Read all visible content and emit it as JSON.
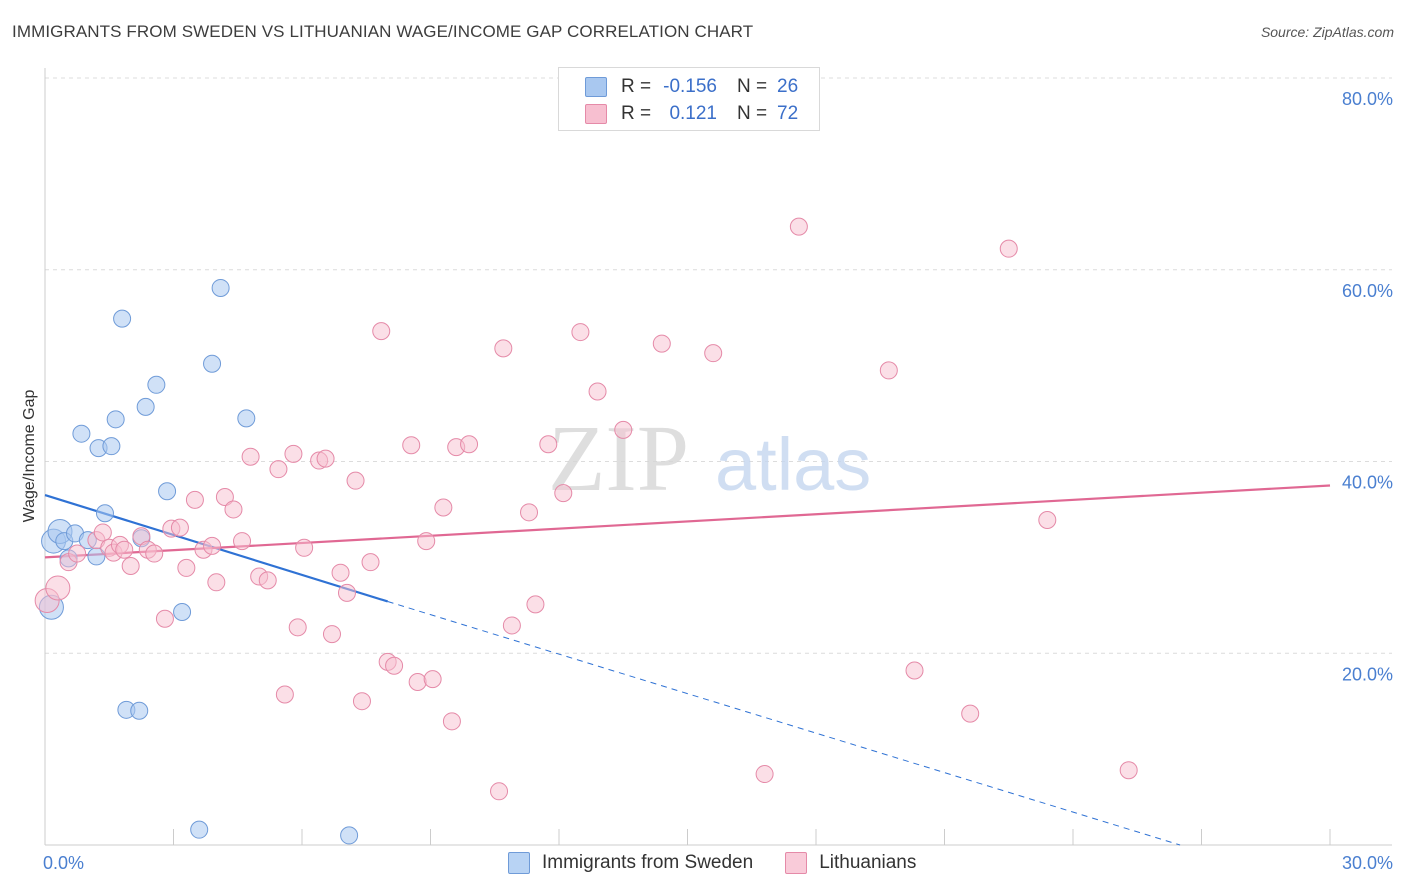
{
  "header": {
    "title": "IMMIGRANTS FROM SWEDEN VS LITHUANIAN WAGE/INCOME GAP CORRELATION CHART",
    "source": "Source: ZipAtlas.com"
  },
  "watermark": {
    "zip": "ZIP",
    "atlas": "atlas"
  },
  "legend": {
    "rows": [
      {
        "r_label": "R =",
        "r_value": "-0.156",
        "n_label": "N =",
        "n_value": "26",
        "color": "#a9c8f0",
        "border": "#6f9bd8"
      },
      {
        "r_label": "R =",
        "r_value": "0.121",
        "n_label": "N =",
        "n_value": "72",
        "color": "#f7bfd0",
        "border": "#e58aa8"
      }
    ]
  },
  "bottom_legend": {
    "items": [
      {
        "label": "Immigrants from Sweden",
        "color": "#b8d3f4",
        "border": "#6f9bd8"
      },
      {
        "label": "Lithuanians",
        "color": "#f9cbd9",
        "border": "#e58aa8"
      }
    ]
  },
  "chart_data": {
    "type": "scatter",
    "title": "IMMIGRANTS FROM SWEDEN VS LITHUANIAN WAGE/INCOME GAP CORRELATION CHART",
    "xlabel": "",
    "ylabel": "Wage/Income Gap",
    "xlim": [
      0,
      30
    ],
    "ylim": [
      0,
      80
    ],
    "x_tick_labels": [
      "0.0%",
      "30.0%"
    ],
    "y_ticks": [
      20,
      40,
      60,
      80
    ],
    "y_tick_labels": [
      "20.0%",
      "40.0%",
      "60.0%",
      "80.0%"
    ],
    "grid": true,
    "series": [
      {
        "name": "Immigrants from Sweden",
        "color": "#6f9bd8",
        "fill": "rgba(169,200,240,0.55)",
        "points": [
          [
            0.15,
            24.8
          ],
          [
            0.2,
            31.7
          ],
          [
            0.35,
            32.7
          ],
          [
            0.45,
            31.7
          ],
          [
            0.55,
            29.9
          ],
          [
            0.7,
            32.5
          ],
          [
            0.85,
            42.9
          ],
          [
            1.0,
            31.8
          ],
          [
            1.2,
            30.1
          ],
          [
            1.25,
            41.4
          ],
          [
            1.4,
            34.6
          ],
          [
            1.55,
            41.6
          ],
          [
            1.65,
            44.4
          ],
          [
            1.8,
            54.9
          ],
          [
            1.9,
            14.1
          ],
          [
            2.2,
            14.0
          ],
          [
            2.25,
            32.0
          ],
          [
            2.35,
            45.7
          ],
          [
            2.6,
            48.0
          ],
          [
            2.85,
            36.9
          ],
          [
            3.2,
            24.3
          ],
          [
            3.6,
            1.6
          ],
          [
            3.9,
            50.2
          ],
          [
            4.1,
            58.1
          ],
          [
            4.7,
            44.5
          ],
          [
            7.1,
            1.0
          ]
        ],
        "trend": {
          "x0": 0,
          "y0": 36.5,
          "x_solid_end": 8.0,
          "y_solid_end": 25.4,
          "x1": 26.5,
          "y1": 0
        }
      },
      {
        "name": "Lithuanians",
        "color": "#e58aa8",
        "fill": "rgba(247,191,208,0.5)",
        "points": [
          [
            0.05,
            25.5
          ],
          [
            0.3,
            26.8
          ],
          [
            0.55,
            29.5
          ],
          [
            0.75,
            30.4
          ],
          [
            1.2,
            31.8
          ],
          [
            1.35,
            32.6
          ],
          [
            1.5,
            31.0
          ],
          [
            1.6,
            30.5
          ],
          [
            1.75,
            31.3
          ],
          [
            1.85,
            30.8
          ],
          [
            2.0,
            29.1
          ],
          [
            2.25,
            32.2
          ],
          [
            2.4,
            30.8
          ],
          [
            2.55,
            30.4
          ],
          [
            2.8,
            23.6
          ],
          [
            2.95,
            33.0
          ],
          [
            3.15,
            33.1
          ],
          [
            3.3,
            28.9
          ],
          [
            3.5,
            36.0
          ],
          [
            3.7,
            30.8
          ],
          [
            3.9,
            31.2
          ],
          [
            4.0,
            27.4
          ],
          [
            4.2,
            36.3
          ],
          [
            4.4,
            35.0
          ],
          [
            4.6,
            31.7
          ],
          [
            4.8,
            40.5
          ],
          [
            5.0,
            28.0
          ],
          [
            5.2,
            27.6
          ],
          [
            5.45,
            39.2
          ],
          [
            5.6,
            15.7
          ],
          [
            5.8,
            40.8
          ],
          [
            5.9,
            22.7
          ],
          [
            6.05,
            31.0
          ],
          [
            6.4,
            40.1
          ],
          [
            6.55,
            40.3
          ],
          [
            6.7,
            22.0
          ],
          [
            6.9,
            28.4
          ],
          [
            7.05,
            26.3
          ],
          [
            7.25,
            38.0
          ],
          [
            7.4,
            15.0
          ],
          [
            7.6,
            29.5
          ],
          [
            7.85,
            53.6
          ],
          [
            8.0,
            19.1
          ],
          [
            8.15,
            18.7
          ],
          [
            8.55,
            41.7
          ],
          [
            8.7,
            17.0
          ],
          [
            8.9,
            31.7
          ],
          [
            9.05,
            17.3
          ],
          [
            9.3,
            35.2
          ],
          [
            9.5,
            12.9
          ],
          [
            9.6,
            41.5
          ],
          [
            9.9,
            41.8
          ],
          [
            10.6,
            5.6
          ],
          [
            10.7,
            51.8
          ],
          [
            10.9,
            22.9
          ],
          [
            11.3,
            34.7
          ],
          [
            11.45,
            25.1
          ],
          [
            11.75,
            41.8
          ],
          [
            12.1,
            36.7
          ],
          [
            12.5,
            53.5
          ],
          [
            12.9,
            47.3
          ],
          [
            13.5,
            43.3
          ],
          [
            14.4,
            52.3
          ],
          [
            15.6,
            51.3
          ],
          [
            16.8,
            7.4
          ],
          [
            17.6,
            64.5
          ],
          [
            19.7,
            49.5
          ],
          [
            20.3,
            18.2
          ],
          [
            21.6,
            13.7
          ],
          [
            22.5,
            62.2
          ],
          [
            23.4,
            33.9
          ],
          [
            25.3,
            7.8
          ]
        ],
        "trend": {
          "x0": 0,
          "y0": 30.0,
          "x1": 30,
          "y1": 37.5
        }
      }
    ]
  }
}
